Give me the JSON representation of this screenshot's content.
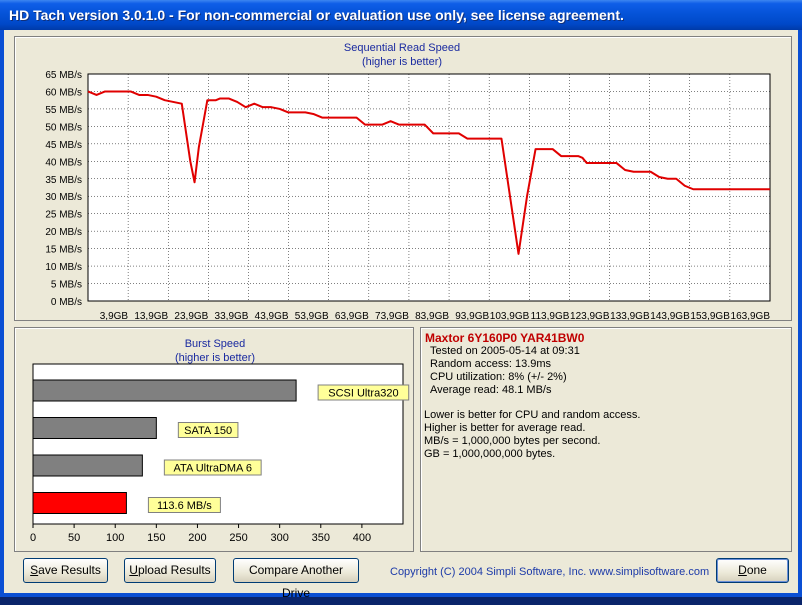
{
  "window": {
    "title": "HD Tach version 3.0.1.0  - For non-commercial or evaluation use only, see license agreement."
  },
  "colors": {
    "line": "#e00000",
    "bar": "#808080",
    "highlight_bar": "#ff0000",
    "label_bg": "#ffff99",
    "title_text": "#1a2aa0"
  },
  "chart_data": [
    {
      "type": "line",
      "title": "Sequential Read Speed",
      "subtitle": "(higher is better)",
      "ylabel": "MB/s",
      "ylim": [
        0,
        65
      ],
      "yticks": [
        0,
        5,
        10,
        15,
        20,
        25,
        30,
        35,
        40,
        45,
        50,
        55,
        60,
        65
      ],
      "ytick_labels": [
        "0 MB/s",
        "5 MB/s",
        "10 MB/s",
        "15 MB/s",
        "20 MB/s",
        "25 MB/s",
        "30 MB/s",
        "35 MB/s",
        "40 MB/s",
        "45 MB/s",
        "50 MB/s",
        "55 MB/s",
        "60 MB/s",
        "65 MB/s"
      ],
      "xticks": [
        "3,9GB",
        "13,9GB",
        "23,9GB",
        "33,9GB",
        "43,9GB",
        "53,9GB",
        "63,9GB",
        "73,9GB",
        "83,9GB",
        "93,9GB",
        "103,9GB",
        "113,9GB",
        "123,9GB",
        "133,9GB",
        "143,9GB",
        "153,9GB",
        "163,9GB"
      ],
      "xlim": [
        3.9,
        163.9
      ],
      "grid": true,
      "series": [
        {
          "x": [
            0,
            2,
            4,
            6,
            8,
            10,
            12,
            14,
            16,
            18,
            20,
            22,
            24,
            25,
            26,
            28,
            30,
            31,
            33,
            35,
            37,
            39,
            41,
            43,
            45,
            47,
            49,
            51,
            53,
            55,
            57,
            59,
            61,
            63,
            65,
            67,
            69,
            71,
            73,
            75,
            77,
            79,
            81,
            83,
            85,
            87,
            89,
            91,
            93,
            95,
            97,
            99,
            101,
            103,
            105,
            107,
            109,
            111,
            113,
            115,
            116,
            117,
            118,
            120,
            122,
            124,
            126,
            128,
            130,
            132,
            134,
            136,
            138,
            140,
            142,
            144,
            146,
            148,
            150,
            152,
            154,
            156,
            158,
            160
          ],
          "y": [
            60,
            59,
            60,
            60,
            60,
            60,
            59,
            59,
            58.5,
            57.5,
            57,
            56.5,
            40,
            34,
            44,
            57.5,
            57.5,
            58,
            58,
            57,
            55.5,
            56.5,
            55.5,
            55.5,
            55,
            54,
            54,
            54,
            53.5,
            52.5,
            52.5,
            52.5,
            52.5,
            52.5,
            50.5,
            50.5,
            50.5,
            51.5,
            50.5,
            50.5,
            50.5,
            50.5,
            48,
            48,
            48,
            48,
            46.5,
            46.5,
            46.5,
            46.5,
            46.5,
            30,
            13.5,
            30,
            43.5,
            43.5,
            43.5,
            41.5,
            41.5,
            41.5,
            41,
            39.5,
            39.5,
            39.5,
            39.5,
            39.5,
            37.5,
            37,
            37,
            37,
            35.5,
            35,
            35,
            33,
            32,
            32,
            32,
            32,
            32,
            32,
            32,
            32,
            32,
            32
          ]
        }
      ]
    },
    {
      "type": "bar",
      "title": "Burst Speed",
      "subtitle": "(higher is better)",
      "orientation": "horizontal",
      "xlim": [
        0,
        450
      ],
      "xticks": [
        0,
        50,
        100,
        150,
        200,
        250,
        300,
        350,
        400
      ],
      "grid": false,
      "categories": [
        "SCSI Ultra320",
        "SATA 150",
        "ATA UltraDMA 6",
        "113.6 MB/s"
      ],
      "values": [
        320,
        150,
        133,
        113.6
      ],
      "highlight_index": 3
    }
  ],
  "info": {
    "drive": "Maxtor 6Y160P0 YAR41BW0",
    "lines": [
      "Tested on 2005-05-14 at 09:31",
      "Random access: 13.9ms",
      "CPU utilization: 8% (+/- 2%)",
      "Average read: 48.1 MB/s"
    ],
    "notes": [
      "Lower is better for CPU and random access.",
      "Higher is better for average read.",
      "MB/s = 1,000,000 bytes per second.",
      "GB = 1,000,000,000 bytes."
    ]
  },
  "buttons": {
    "save": {
      "hot": "S",
      "rest": "ave Results"
    },
    "upload": {
      "hot": "U",
      "rest": "pload Results"
    },
    "compare": {
      "hot": "",
      "rest": "Compare Another Drive"
    },
    "done": {
      "hot": "D",
      "rest": "one"
    }
  },
  "copyright": "Copyright (C) 2004 Simpli Software, Inc. www.simplisoftware.com"
}
